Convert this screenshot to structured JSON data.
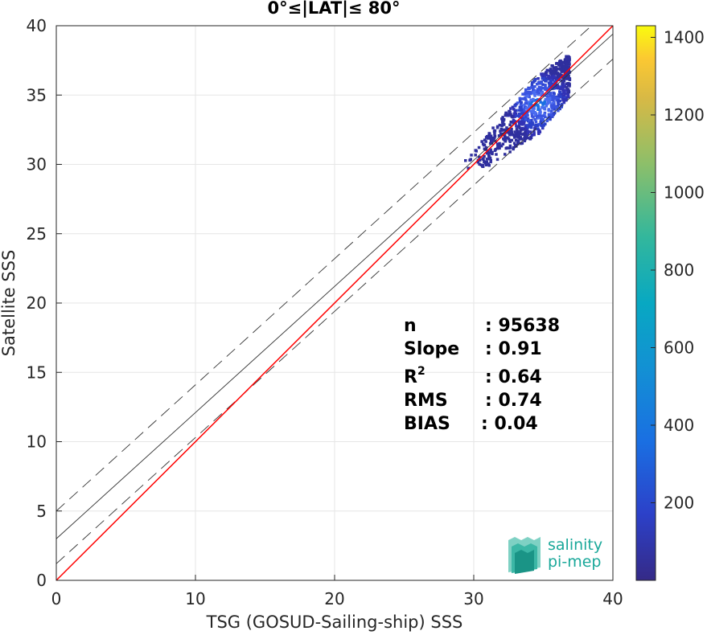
{
  "chart_data": {
    "type": "heatmap",
    "title": "0°≤|LAT|≤ 80°",
    "xlabel": "TSG (GOSUD-Sailing-ship) SSS",
    "ylabel": "Satellite SSS",
    "xlim": [
      0,
      40
    ],
    "ylim": [
      0,
      40
    ],
    "xticks": [
      "0",
      "10",
      "20",
      "30",
      "40"
    ],
    "yticks": [
      "0",
      "5",
      "10",
      "15",
      "20",
      "25",
      "30",
      "35",
      "40"
    ],
    "grid": true,
    "reference_lines": {
      "identity": {
        "color": "#ff0000",
        "slope": 1,
        "intercept": 0
      },
      "fit": {
        "color": "#333333",
        "slope": 0.91,
        "intercept": 3.0
      },
      "fit_minus": {
        "color": "#333333",
        "slope": 0.91,
        "intercept": 1.2,
        "dashed": true
      },
      "fit_plus": {
        "color": "#333333",
        "slope": 0.91,
        "intercept": 5.0,
        "dashed": true
      }
    },
    "cluster": {
      "x_range": [
        28.5,
        36.8
      ],
      "y_range": [
        29.8,
        38.2
      ],
      "center": [
        34.6,
        34.5
      ]
    },
    "colorbar": {
      "min": 0,
      "max": 1430,
      "ticks": [
        "200",
        "400",
        "600",
        "800",
        "1000",
        "1200",
        "1400"
      ],
      "colormap": "parula"
    }
  },
  "stats": [
    {
      "label": "n",
      "value": ": 95638"
    },
    {
      "label": "Slope",
      "value": ": 0.91"
    },
    {
      "label": "R",
      "sup": "2",
      "value": ": 0.64"
    },
    {
      "label": "RMS",
      "value": ": 0.74"
    },
    {
      "label": "BIAS",
      "value": ": 0.04"
    }
  ],
  "logo": {
    "line1": "salinity",
    "line2": "pi-mep"
  },
  "colors": {
    "identity": "#ff0000",
    "fit": "#333333",
    "logo": "#1aa89a",
    "grid": "#e6e6e6"
  }
}
